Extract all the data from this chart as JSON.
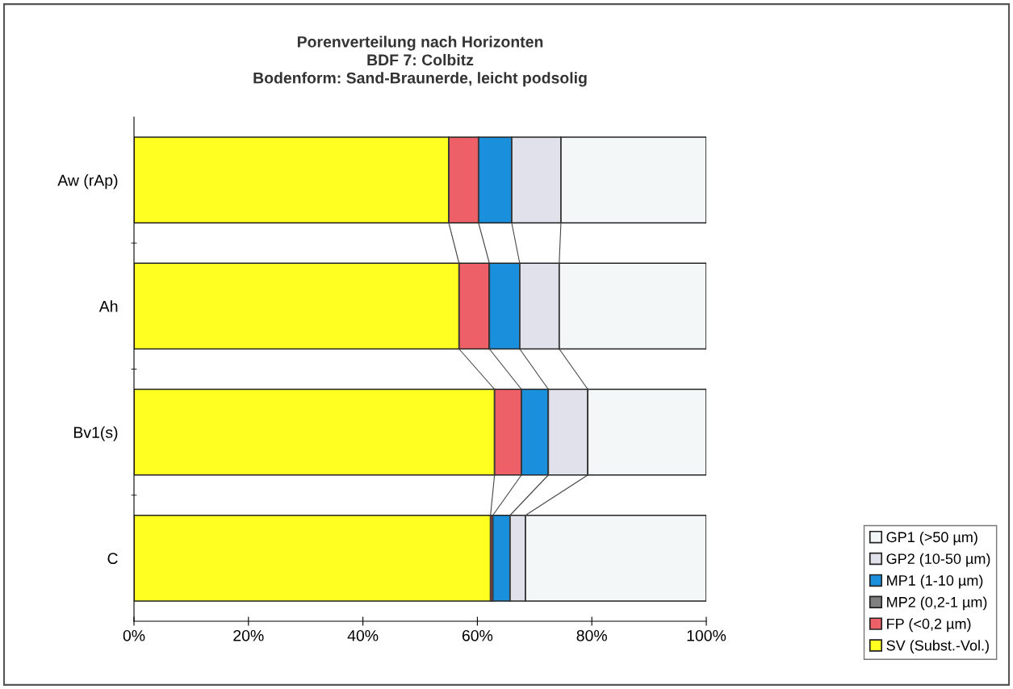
{
  "chart_data": {
    "type": "bar",
    "orientation": "horizontal",
    "stacked": true,
    "title": "Porenverteilung nach Horizonten\nBDF 7: Colbitz\nBodenform: Sand-Braunerde, leicht podsolig",
    "categories": [
      "Aw (rAp)",
      "Ah",
      "Bv1(s)",
      "C"
    ],
    "series": [
      {
        "name": "SV (Subst.-Vol.)",
        "color": "#ffff22",
        "values": [
          55.0,
          56.8,
          63.0,
          62.3
        ]
      },
      {
        "name": "FP (<0,2 µm)",
        "color": "#ee6068",
        "values": [
          5.2,
          5.3,
          4.7,
          0.4
        ]
      },
      {
        "name": "MP2 (0,2-1 µm)",
        "color": "#808080",
        "values": [
          0,
          0,
          0,
          0
        ]
      },
      {
        "name": "MP1 (1-10 µm)",
        "color": "#1a90dc",
        "values": [
          5.8,
          5.3,
          4.7,
          3.0
        ]
      },
      {
        "name": "GP2 (10-50 µm)",
        "color": "#e0e1ea",
        "values": [
          8.6,
          6.9,
          6.9,
          2.7
        ]
      },
      {
        "name": "GP1 (>50 µm)",
        "color": "#f3f7f8",
        "values": [
          25.4,
          25.7,
          20.7,
          31.6
        ]
      }
    ],
    "xlim": [
      0,
      100
    ],
    "xticks": [
      {
        "value": 0,
        "label": "0%"
      },
      {
        "value": 20,
        "label": "20%"
      },
      {
        "value": 40,
        "label": "40%"
      },
      {
        "value": 60,
        "label": "60%"
      },
      {
        "value": 80,
        "label": "80%"
      },
      {
        "value": 100,
        "label": "100%"
      }
    ],
    "grid": false,
    "legend": "bottom right"
  }
}
